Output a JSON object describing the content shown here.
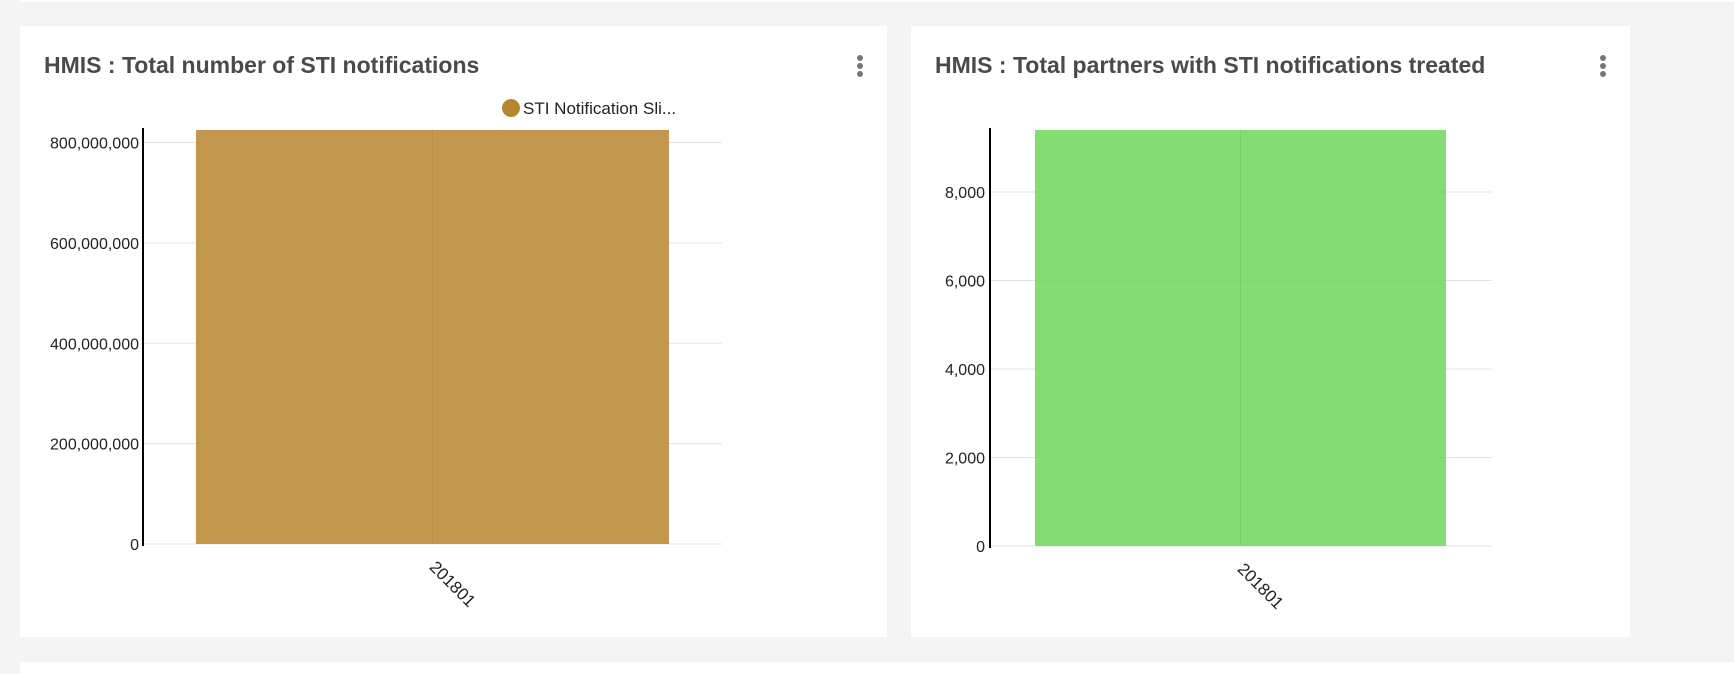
{
  "charts": [
    {
      "title": "HMIS : Total number of STI notifications",
      "legend": "STI Notification Sli...",
      "color": "#b8862f",
      "chart_data": {
        "type": "bar",
        "categories": [
          "201801"
        ],
        "series": [
          {
            "name": "STI Notification Sli...",
            "values": [
              825000000
            ]
          }
        ],
        "yticks": [
          0,
          200000000,
          400000000,
          600000000,
          800000000
        ],
        "ytick_labels": [
          "0",
          "200,000,000",
          "400,000,000",
          "600,000,000",
          "800,000,000"
        ],
        "ylim": [
          0,
          825000000
        ],
        "grid": true,
        "legend_position": "top-right"
      }
    },
    {
      "title": "HMIS : Total partners with STI notifications treated",
      "color": "#6fd75a",
      "chart_data": {
        "type": "bar",
        "categories": [
          "201801"
        ],
        "series": [
          {
            "values": [
              9400
            ]
          }
        ],
        "yticks": [
          0,
          2000,
          4000,
          6000,
          8000
        ],
        "ytick_labels": [
          "0",
          "2,000",
          "4,000",
          "6,000",
          "8,000"
        ],
        "ylim": [
          0,
          9400
        ],
        "grid": true
      }
    }
  ]
}
